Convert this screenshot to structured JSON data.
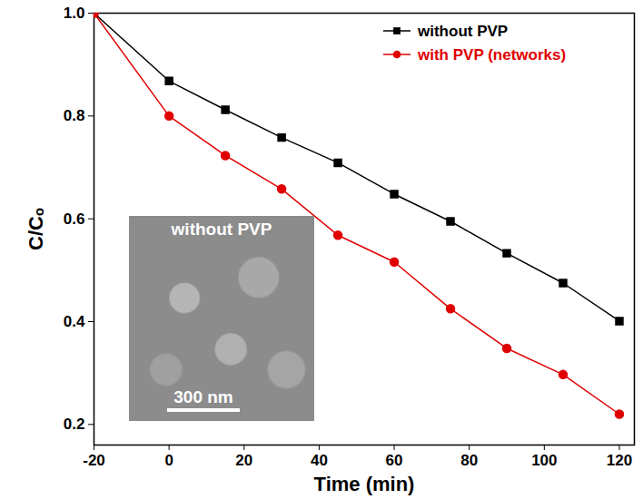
{
  "chart_data": {
    "type": "line",
    "x_label": "Time (min)",
    "y_label": "C/Cₒ",
    "x": [
      -20,
      0,
      15,
      30,
      45,
      60,
      75,
      90,
      105,
      120
    ],
    "series": [
      {
        "name": "without PVP",
        "color": "#000000",
        "marker": "square",
        "values": [
          1.0,
          0.868,
          0.812,
          0.758,
          0.709,
          0.648,
          0.595,
          0.533,
          0.475,
          0.401
        ]
      },
      {
        "name": "with PVP (networks)",
        "color": "#e00000",
        "marker": "circle",
        "values": [
          1.0,
          0.8,
          0.723,
          0.658,
          0.568,
          0.516,
          0.425,
          0.348,
          0.297,
          0.22
        ]
      }
    ],
    "xlim": [
      -20,
      124
    ],
    "xticks": [
      -20,
      0,
      20,
      40,
      60,
      80,
      100,
      120
    ],
    "ylim": [
      0.16,
      1.0
    ],
    "yticks": [
      {
        "value": 0.2,
        "label": "0.2"
      },
      {
        "value": 0.4,
        "label": "0.4"
      },
      {
        "value": 0.6,
        "label": "0.6"
      },
      {
        "value": 0.8,
        "label": "0.8"
      },
      {
        "value": 1.0,
        "label": "1.0"
      }
    ],
    "legend": "top-right",
    "annotations": [
      "without PVP",
      "300 nm"
    ]
  }
}
